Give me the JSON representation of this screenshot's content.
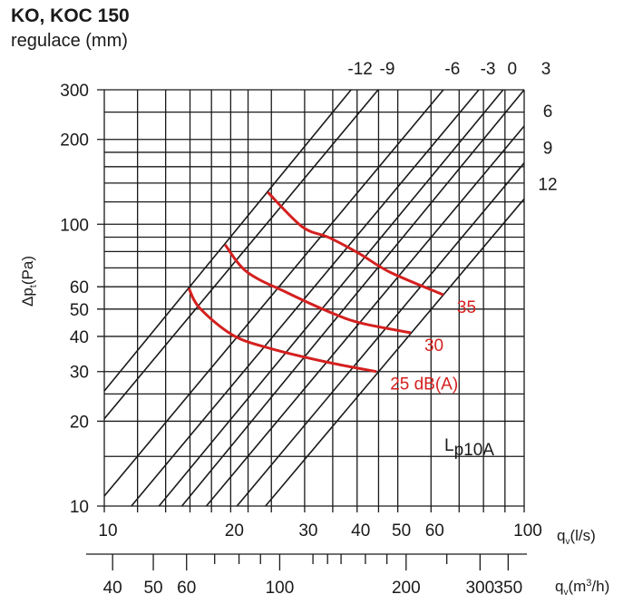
{
  "title": "KO, KOC 150",
  "subtitle": "regulace (mm)",
  "chart_data": {
    "type": "line",
    "title": "KO, KOC 150",
    "subtitle": "regulace (mm)",
    "scale": "log-log",
    "x_axis": {
      "symbol": "q",
      "sub": "v",
      "unit": "(l/s)",
      "range": [
        10,
        100
      ],
      "tick_labels": [
        10,
        20,
        30,
        40,
        50,
        60,
        100
      ],
      "grid": [
        10,
        12,
        14,
        16,
        18,
        20,
        22,
        25,
        30,
        35,
        40,
        45,
        50,
        60,
        70,
        80,
        90,
        100
      ]
    },
    "x2_axis": {
      "symbol": "q",
      "sub": "v",
      "unit": "(m",
      "unit_sup": "3",
      "unit_end": "/h)",
      "tick_labels": [
        40,
        50,
        60,
        100,
        200,
        300,
        350
      ],
      "ticks": [
        40,
        50,
        60,
        70,
        80,
        90,
        100,
        120,
        130,
        140,
        160,
        180,
        200,
        250,
        300,
        350
      ]
    },
    "y_axis": {
      "symbol": "Δp",
      "sub": "t",
      "unit": "(Pa)",
      "range": [
        10,
        300
      ],
      "tick_labels": [
        10,
        20,
        30,
        40,
        50,
        60,
        100,
        200,
        300
      ],
      "grid": [
        10,
        15,
        20,
        25,
        30,
        40,
        50,
        60,
        70,
        80,
        90,
        100,
        120,
        140,
        160,
        180,
        200,
        250,
        300
      ]
    },
    "regulation_lines": [
      {
        "label": "-12",
        "points": [
          [
            10,
            25.6
          ],
          [
            38.7,
            300
          ]
        ]
      },
      {
        "label": "-9",
        "points": [
          [
            10,
            20.4
          ],
          [
            44.9,
            300
          ]
        ]
      },
      {
        "label": "-6",
        "points": [
          [
            10,
            10.85
          ],
          [
            64.2,
            300
          ]
        ]
      },
      {
        "label": "-3",
        "points": [
          [
            11.6,
            10
          ],
          [
            78.0,
            300
          ]
        ]
      },
      {
        "label": "0",
        "points": [
          [
            13.5,
            10
          ],
          [
            89.1,
            300
          ]
        ]
      },
      {
        "label": "3",
        "points": [
          [
            15.3,
            10
          ],
          [
            100,
            300
          ]
        ]
      },
      {
        "label": "6",
        "points": [
          [
            17.5,
            10
          ],
          [
            100,
            223
          ]
        ]
      },
      {
        "label": "9",
        "points": [
          [
            20.7,
            10
          ],
          [
            100,
            165
          ]
        ]
      },
      {
        "label": "12",
        "points": [
          [
            24.2,
            10
          ],
          [
            100,
            123
          ]
        ]
      }
    ],
    "series": [
      {
        "name": "35",
        "label": "35",
        "color": "#d4201f",
        "points": [
          [
            24.5,
            130
          ],
          [
            29.6,
            98
          ],
          [
            34.3,
            89.7
          ],
          [
            40.6,
            78.5
          ],
          [
            47.9,
            67.6
          ],
          [
            64.2,
            56.2
          ]
        ]
      },
      {
        "name": "30",
        "label": "30",
        "color": "#d4201f",
        "points": [
          [
            19.4,
            84.5
          ],
          [
            21.9,
            67.6
          ],
          [
            27.3,
            57.1
          ],
          [
            34.3,
            48.9
          ],
          [
            40.6,
            44.7
          ],
          [
            53.7,
            41.2
          ]
        ]
      },
      {
        "name": "25",
        "label": "25 dB(A)",
        "color": "#d4201f",
        "points": [
          [
            15.9,
            59.2
          ],
          [
            16.9,
            50.3
          ],
          [
            20.3,
            40.3
          ],
          [
            25.1,
            36.1
          ],
          [
            34.3,
            32.3
          ],
          [
            44.5,
            30.0
          ]
        ]
      }
    ],
    "annotation": {
      "main": "L",
      "sub": "p10A"
    }
  }
}
